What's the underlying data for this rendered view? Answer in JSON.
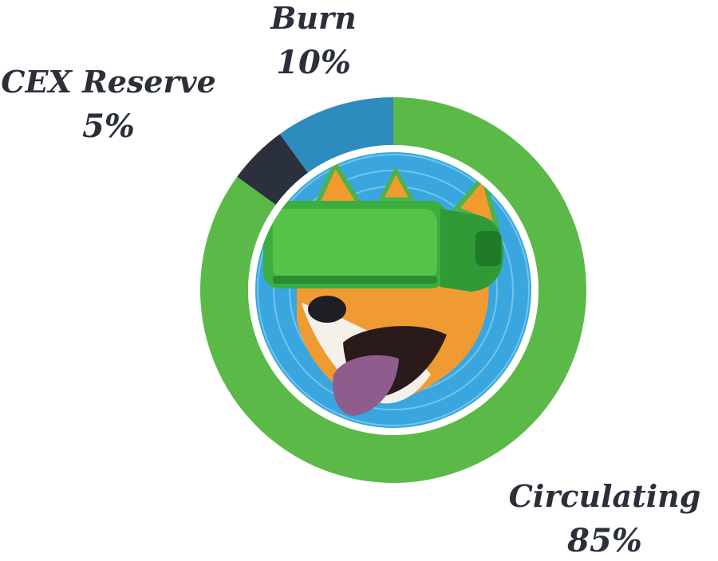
{
  "chart_data": {
    "type": "pie",
    "categories": [
      "Circulating",
      "Burn",
      "CEX Reserve"
    ],
    "values": [
      85,
      10,
      5
    ],
    "labels": [
      {
        "name": "Circulating",
        "pct": "85%"
      },
      {
        "name": "Burn",
        "pct": "10%"
      },
      {
        "name": "CEX Reserve",
        "pct": "5%"
      }
    ],
    "colors": [
      "#5bb947",
      "#2e8bbd",
      "#2b313c"
    ],
    "start_angle_deg": 0,
    "direction": "clockwise",
    "hole": "mascot-illustration"
  },
  "mascot": {
    "icon": "vr-headset-shiba-dog-icon"
  }
}
